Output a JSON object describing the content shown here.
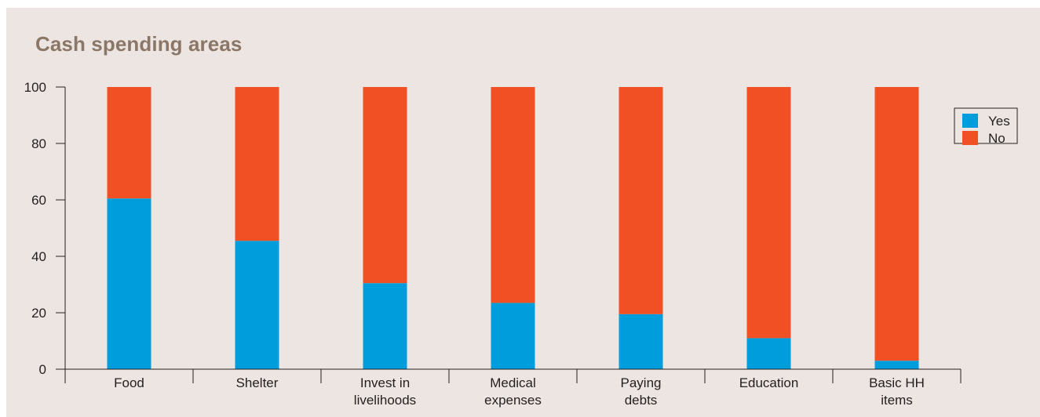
{
  "chart_data": {
    "type": "bar",
    "stacked": true,
    "title": "Cash spending areas",
    "xlabel": "",
    "ylabel": "",
    "ylim": [
      0,
      100
    ],
    "yticks": [
      0,
      20,
      40,
      60,
      80,
      100
    ],
    "categories": [
      [
        "Food"
      ],
      [
        "Shelter"
      ],
      [
        "Invest in",
        "livelihoods"
      ],
      [
        "Medical",
        "expenses"
      ],
      [
        "Paying",
        "debts"
      ],
      [
        "Education"
      ],
      [
        "Basic HH",
        "items"
      ]
    ],
    "series": [
      {
        "name": "Yes",
        "color": "#009ddc",
        "values": [
          60.5,
          45.5,
          30.5,
          23.5,
          19.5,
          11,
          3
        ]
      },
      {
        "name": "No",
        "color": "#f05023",
        "values": [
          39.5,
          54.5,
          69.5,
          76.5,
          80.5,
          89,
          97
        ]
      }
    ],
    "legend": {
      "position": "top-right"
    },
    "grid": false,
    "colors": {
      "background": "#ede5e1",
      "title": "#8b7767",
      "axis": "#231f20"
    }
  }
}
